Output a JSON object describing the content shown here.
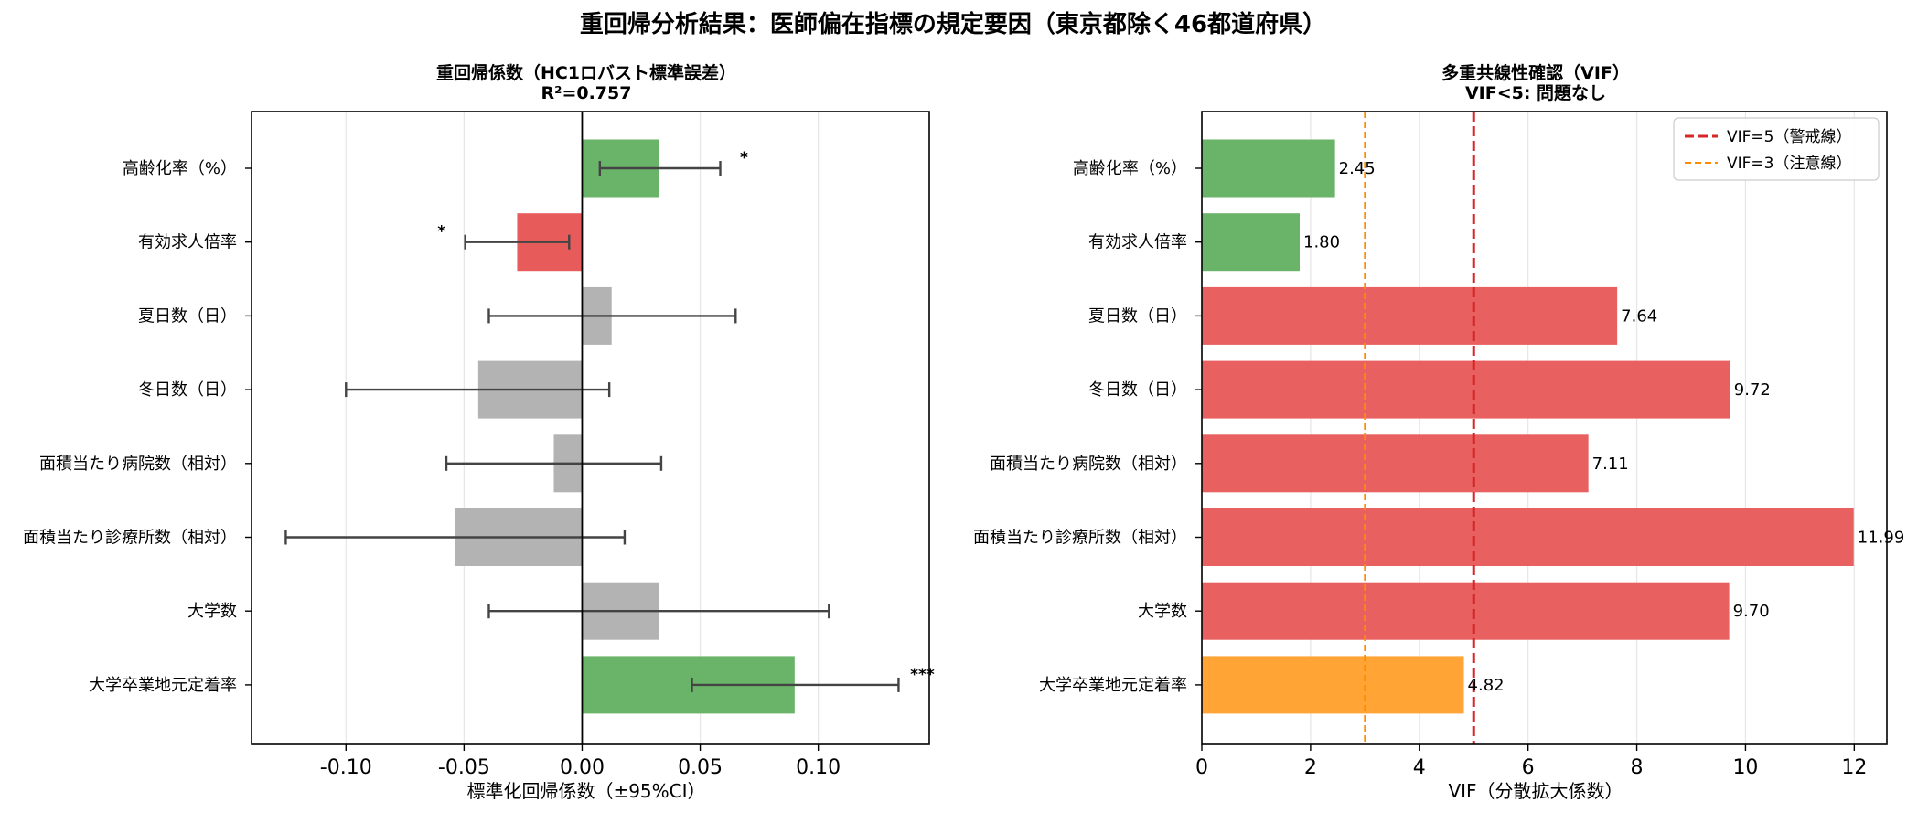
{
  "suptitle": "重回帰分析結果：医師偏在指標の規定要因（東京都除く46都道府県）",
  "chart_data": [
    {
      "type": "bar",
      "orientation": "horizontal",
      "title": "重回帰係数（HC1ロバスト標準誤差）",
      "subtitle": "R²=0.757",
      "xlabel": "標準化回帰係数（±95%CI）",
      "ylabel": "",
      "xlim": [
        -0.14,
        0.147
      ],
      "xticks": [
        -0.1,
        -0.05,
        0.0,
        0.05,
        0.1
      ],
      "xtick_labels": [
        "-0.10",
        "-0.05",
        "0.00",
        "0.05",
        "0.10"
      ],
      "grid": true,
      "categories": [
        "高齢化率（%）",
        "有効求人倍率",
        "夏日数（日）",
        "冬日数（日）",
        "面積当たり病院数（相対）",
        "面積当たり診療所数（相対）",
        "大学数",
        "大学卒業地元定着率"
      ],
      "values": [
        0.0325,
        -0.0275,
        0.0125,
        -0.044,
        -0.012,
        -0.054,
        0.0325,
        0.09
      ],
      "ci_low": [
        0.0075,
        -0.0495,
        -0.0395,
        -0.1,
        -0.0575,
        -0.1255,
        -0.0395,
        0.0465
      ],
      "ci_high": [
        0.0585,
        -0.0055,
        0.065,
        0.0115,
        0.0335,
        0.018,
        0.1045,
        0.134
      ],
      "significance": [
        "*",
        "*",
        "",
        "",
        "",
        "",
        "",
        "***"
      ],
      "bar_colors": [
        "#6ab46a",
        "#e85b5b",
        "#b3b3b3",
        "#b3b3b3",
        "#b3b3b3",
        "#b3b3b3",
        "#b3b3b3",
        "#6ab46a"
      ]
    },
    {
      "type": "bar",
      "orientation": "horizontal",
      "title": "多重共線性確認（VIF）",
      "subtitle": "VIF<5: 問題なし",
      "xlabel": "VIF（分散拡大係数）",
      "ylabel": "",
      "xlim": [
        0,
        12.6
      ],
      "xticks": [
        0,
        2,
        4,
        6,
        8,
        10,
        12
      ],
      "xtick_labels": [
        "0",
        "2",
        "4",
        "6",
        "8",
        "10",
        "12"
      ],
      "grid": true,
      "categories": [
        "高齢化率（%）",
        "有効求人倍率",
        "夏日数（日）",
        "冬日数（日）",
        "面積当たり病院数（相対）",
        "面積当たり診療所数（相対）",
        "大学数",
        "大学卒業地元定着率"
      ],
      "values": [
        2.45,
        1.8,
        7.64,
        9.72,
        7.11,
        11.99,
        9.7,
        4.82
      ],
      "value_labels": [
        "2.45",
        "1.80",
        "7.64",
        "9.72",
        "7.11",
        "11.99",
        "9.70",
        "4.82"
      ],
      "bar_colors": [
        "#6ab46a",
        "#6ab46a",
        "#e86060",
        "#e86060",
        "#e86060",
        "#e86060",
        "#e86060",
        "#ffa435"
      ],
      "reference_lines": [
        {
          "x": 5,
          "label": "VIF=5（警戒線）",
          "color": "#d62728",
          "style": "dashed"
        },
        {
          "x": 3,
          "label": "VIF=3（注意線）",
          "color": "#ff8c00",
          "style": "dashed"
        }
      ],
      "legend_position": "top-right"
    }
  ]
}
